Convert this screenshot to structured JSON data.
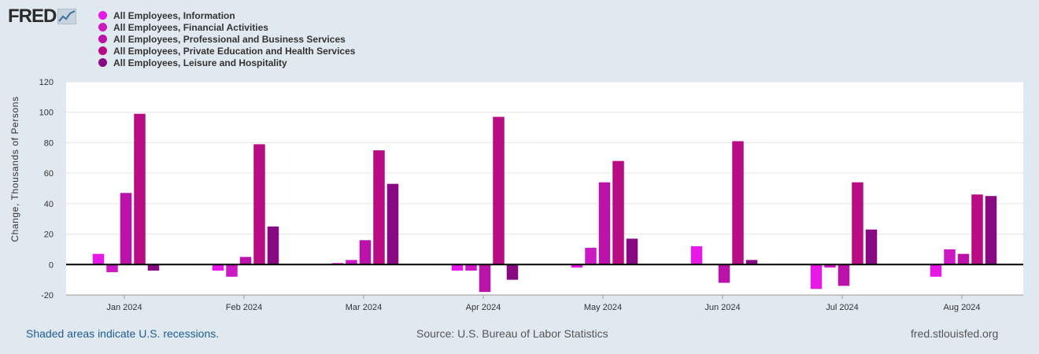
{
  "logo": {
    "text": "FRED"
  },
  "legend": [
    {
      "label": "All Employees, Information",
      "color": "#e619e6"
    },
    {
      "label": "All Employees, Financial Activities",
      "color": "#cc19c4"
    },
    {
      "label": "All Employees, Professional and Business Services",
      "color": "#bb12a9"
    },
    {
      "label": "All Employees, Private Education and Health Services",
      "color": "#b70c83"
    },
    {
      "label": "All Employees, Leisure and Hospitality",
      "color": "#880a82"
    }
  ],
  "footer": {
    "recessions": "Shaded areas indicate U.S. recessions.",
    "source": "Source: U.S. Bureau of Labor Statistics",
    "site": "fred.stlouisfed.org"
  },
  "chart_data": {
    "type": "bar",
    "title": "",
    "xlabel": "",
    "ylabel": "Change, Thousands of Persons",
    "ylim": [
      -20,
      120
    ],
    "yticks": [
      -20,
      0,
      20,
      40,
      60,
      80,
      100,
      120
    ],
    "grid": true,
    "legend_position": "top-left",
    "categories": [
      "Jan 2024",
      "Feb 2024",
      "Mar 2024",
      "Apr 2024",
      "May 2024",
      "Jun 2024",
      "Jul 2024",
      "Aug 2024"
    ],
    "series": [
      {
        "name": "All Employees, Information",
        "color": "#e619e6",
        "values": [
          7,
          -4,
          1,
          -4,
          -2,
          12,
          -16,
          -8
        ]
      },
      {
        "name": "All Employees, Financial Activities",
        "color": "#cc19c4",
        "values": [
          -5,
          -8,
          3,
          -4,
          11,
          0,
          -2,
          10
        ]
      },
      {
        "name": "All Employees, Professional and Business Services",
        "color": "#bb12a9",
        "values": [
          47,
          5,
          16,
          -18,
          54,
          -12,
          -14,
          7
        ]
      },
      {
        "name": "All Employees, Private Education and Health Services",
        "color": "#b70c83",
        "values": [
          99,
          79,
          75,
          97,
          68,
          81,
          54,
          46
        ]
      },
      {
        "name": "All Employees, Leisure and Hospitality",
        "color": "#880a82",
        "values": [
          -4,
          25,
          53,
          -10,
          17,
          3,
          23,
          45
        ]
      }
    ]
  }
}
